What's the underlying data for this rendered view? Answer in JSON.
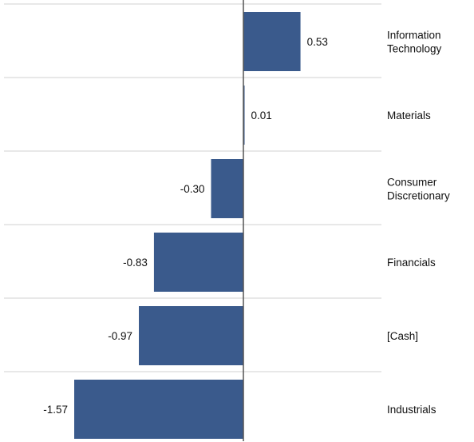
{
  "chart_data": {
    "type": "bar",
    "orientation": "horizontal",
    "title": "",
    "xlabel": "",
    "ylabel": "",
    "categories": [
      [
        "Information",
        "Technology"
      ],
      [
        "Materials"
      ],
      [
        "Consumer",
        "Discretionary"
      ],
      [
        "Financials"
      ],
      [
        "[Cash]"
      ],
      [
        "Industrials"
      ]
    ],
    "values": [
      0.53,
      0.01,
      -0.3,
      -0.83,
      -0.97,
      -1.57
    ],
    "value_labels": [
      "0.53",
      "0.01",
      "-0.30",
      "-0.83",
      "-0.97",
      "-1.57"
    ],
    "colors": {
      "bar": "#3a5a8c",
      "grid": "#d0d0d0",
      "axis": "#555555"
    }
  }
}
